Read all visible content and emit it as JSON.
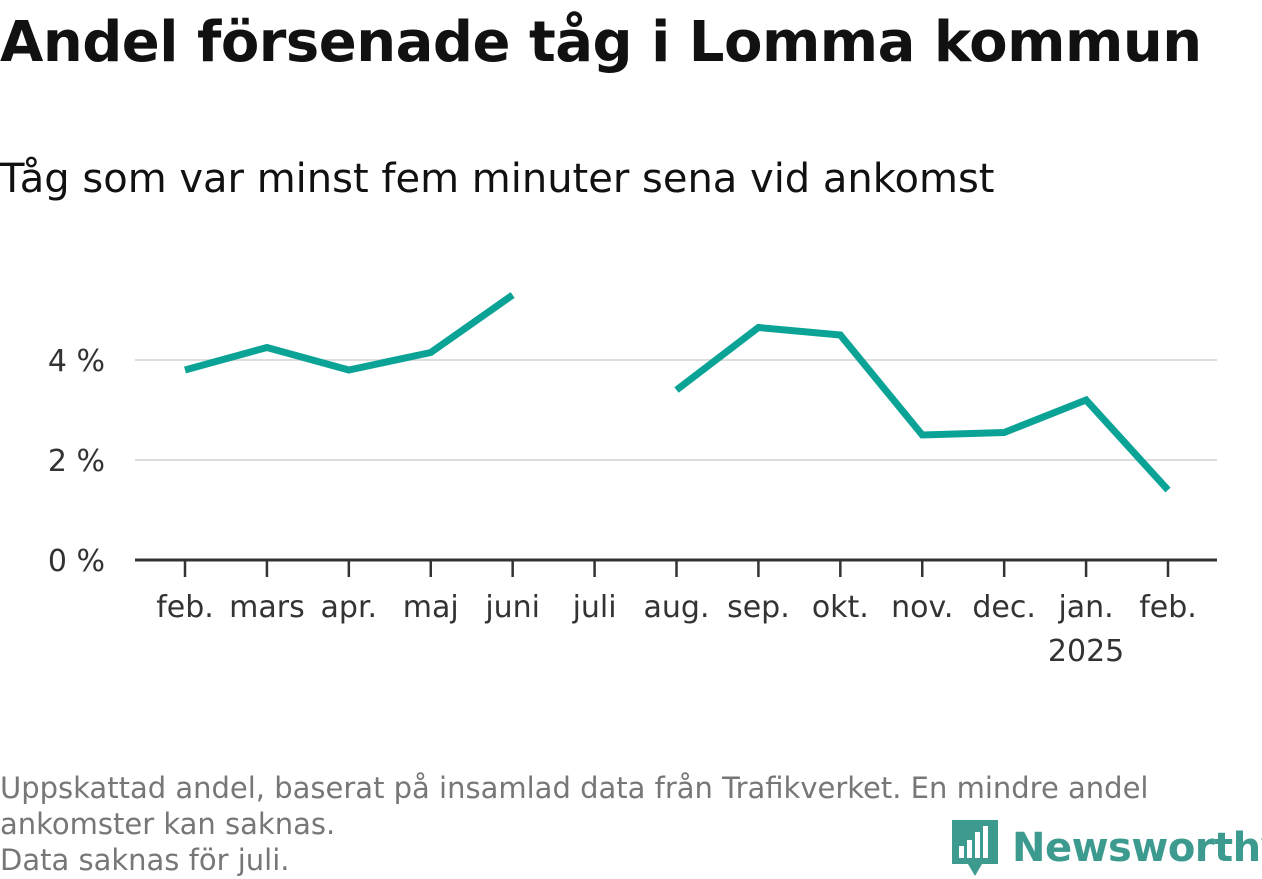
{
  "chart_data": {
    "type": "line",
    "title": "Andel försenade tåg i Lomma kommun",
    "subtitle": "Tåg som var minst fem minuter sena vid ankomst",
    "categories": [
      {
        "label": "feb.",
        "sublabel": ""
      },
      {
        "label": "mars",
        "sublabel": ""
      },
      {
        "label": "apr.",
        "sublabel": ""
      },
      {
        "label": "maj",
        "sublabel": ""
      },
      {
        "label": "juni",
        "sublabel": ""
      },
      {
        "label": "juli",
        "sublabel": ""
      },
      {
        "label": "aug.",
        "sublabel": ""
      },
      {
        "label": "sep.",
        "sublabel": ""
      },
      {
        "label": "okt.",
        "sublabel": ""
      },
      {
        "label": "nov.",
        "sublabel": ""
      },
      {
        "label": "dec.",
        "sublabel": ""
      },
      {
        "label": "jan.",
        "sublabel": "2025"
      },
      {
        "label": "feb.",
        "sublabel": ""
      }
    ],
    "series": [
      {
        "values": [
          3.8,
          4.25,
          3.8,
          4.15,
          5.3,
          null,
          3.4,
          4.65,
          4.5,
          2.5,
          2.55,
          3.2,
          1.4
        ],
        "color": "#0aa396"
      }
    ],
    "y_ticks": [
      {
        "value": 0,
        "label": "0 %"
      },
      {
        "value": 2,
        "label": "2 %"
      },
      {
        "value": 4,
        "label": "4 %"
      }
    ],
    "ylim": [
      0,
      5.3
    ],
    "grid": true,
    "gridline_color": "#dddddd",
    "axis_color": "#333333"
  },
  "footnote": {
    "lines": [
      "Uppskattad andel, baserat på insamlad data från Trafikverket. En mindre andel",
      "ankomster kan saknas.",
      "Data saknas för juli."
    ]
  },
  "logo": {
    "text": "Newsworthy",
    "icon": "bar-chart-speech-bubble-icon",
    "color": "#3c9a8f"
  }
}
